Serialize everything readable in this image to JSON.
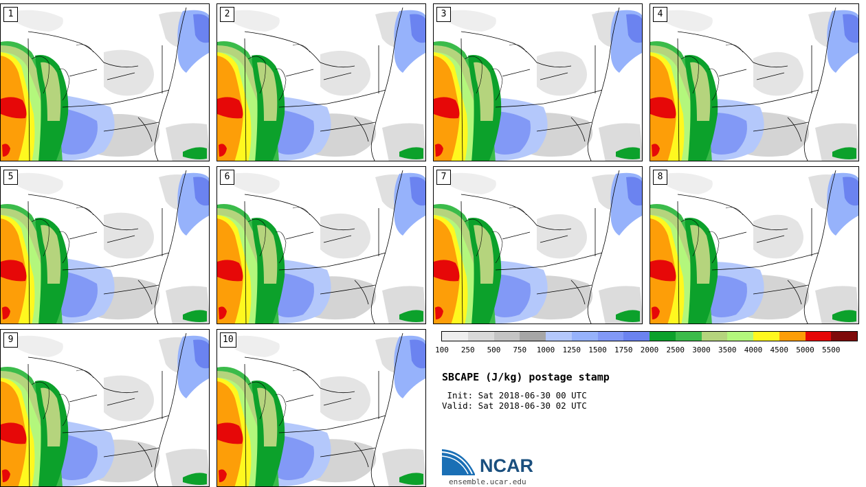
{
  "panels": [
    {
      "label": "1"
    },
    {
      "label": "2"
    },
    {
      "label": "3"
    },
    {
      "label": "4"
    },
    {
      "label": "5"
    },
    {
      "label": "6"
    },
    {
      "label": "7"
    },
    {
      "label": "8"
    },
    {
      "label": "9"
    },
    {
      "label": "10"
    }
  ],
  "colorbar": {
    "ticks": [
      "100",
      "250",
      "500",
      "750",
      "1000",
      "1250",
      "1500",
      "1750",
      "2000",
      "2500",
      "3000",
      "3500",
      "4000",
      "4500",
      "5000",
      "5500"
    ],
    "colors": [
      "#eeeeee",
      "#d9d9d9",
      "#c4c4c4",
      "#a6a6a6",
      "#b4c8fb",
      "#96b2fb",
      "#8299f6",
      "#6b83f0",
      "#0ca12b",
      "#3bbb4a",
      "#b5d47d",
      "#b3f77c",
      "#fff81f",
      "#fd9e08",
      "#e60808",
      "#7e0a0a"
    ]
  },
  "title": "SBCAPE (J/kg) postage stamp",
  "init_line": " Init: Sat 2018-06-30 00 UTC",
  "valid_line": "Valid: Sat 2018-06-30 02 UTC",
  "logo": {
    "text": "NCAR",
    "url": "ensemble.ucar.edu",
    "colors": {
      "blue": "#1a6fb5",
      "dark": "#1a4f7e"
    }
  }
}
